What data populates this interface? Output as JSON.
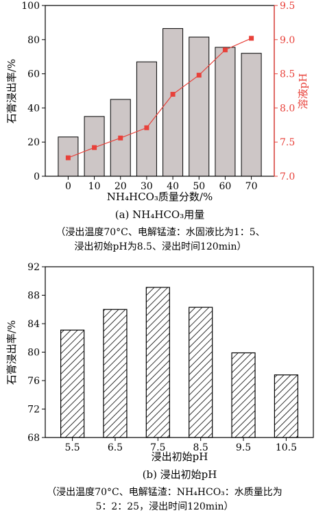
{
  "chart_data": [
    {
      "type": "bar",
      "title": "(a) NH₄HCO₃用量",
      "caption_lines": [
        "（浸出温度70°C、电解锰渣：水固液比为1：5、",
        "浸出初始pH为8.5、浸出时间120min）"
      ],
      "xlabel": "NH₄HCO₃质量分数/%",
      "ylabel": "石膏浸出率/%",
      "ylabel_right": "溶液pH",
      "categories": [
        "0",
        "10",
        "20",
        "30",
        "40",
        "50",
        "60",
        "70"
      ],
      "ylim": [
        0,
        100
      ],
      "yticks": [
        "0",
        "20",
        "40",
        "60",
        "80",
        "100"
      ],
      "ylim_right": [
        7.0,
        9.5
      ],
      "yticks_right": [
        "7.0",
        "7.5",
        "8.0",
        "8.5",
        "9.0",
        "9.5"
      ],
      "bar_color": "#cdc6c6",
      "line_color": "#e8413a",
      "right_axis_color": "#e8413a",
      "series": [
        {
          "values": [
            23,
            35,
            45,
            67,
            86.5,
            81.5,
            75.5,
            72
          ]
        },
        {
          "axis": "right",
          "values": [
            7.27,
            7.42,
            7.56,
            7.71,
            8.2,
            8.48,
            8.85,
            9.02
          ]
        }
      ]
    },
    {
      "type": "bar",
      "title": "(b) 浸出初始pH",
      "caption_lines": [
        "（浸出温度70°C、电解锰渣：NH₄HCO₃：水质量比为",
        "5：2：25，浸出时间120min）"
      ],
      "xlabel": "浸出初始pH",
      "ylabel": "石膏浸出率/%",
      "categories": [
        "5.5",
        "6.5",
        "7.5",
        "8.5",
        "9.5",
        "10.5"
      ],
      "ylim": [
        68,
        92
      ],
      "yticks": [
        "68",
        "72",
        "76",
        "80",
        "84",
        "88",
        "92"
      ],
      "bar_fill": "hatched",
      "values": [
        83.1,
        86.0,
        89.1,
        86.3,
        79.9,
        76.8
      ]
    }
  ]
}
